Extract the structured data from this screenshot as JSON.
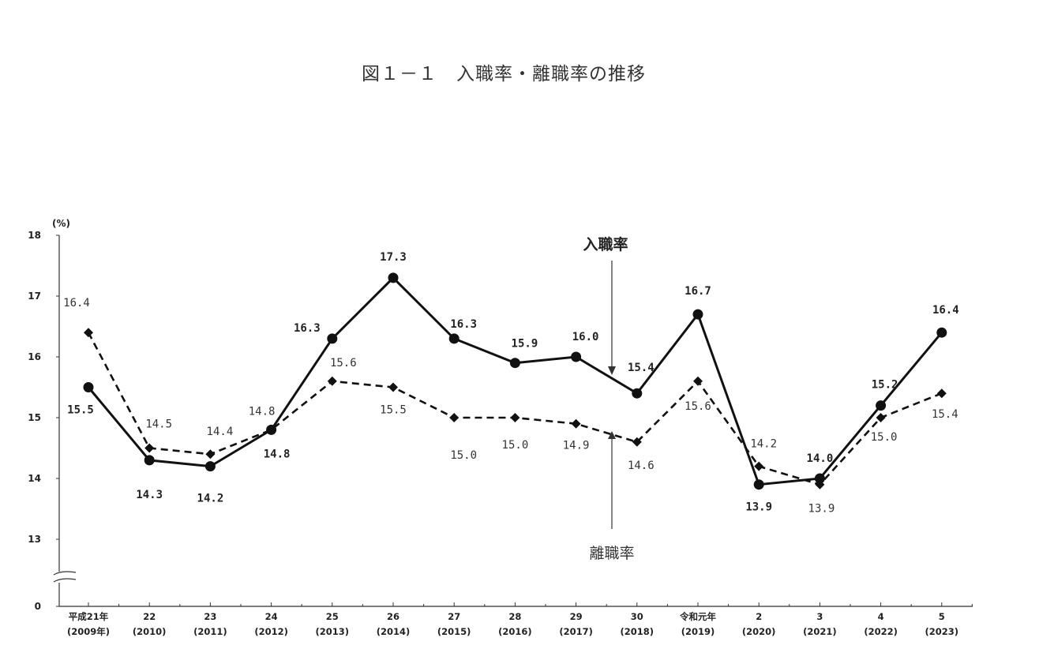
{
  "chart_data": {
    "type": "line",
    "title": "図１－１　入職率・離職率の推移",
    "ylabel": "(%)",
    "ylim": [
      0,
      18
    ],
    "yticks": [
      "18",
      "17",
      "16",
      "15",
      "14",
      "13",
      "0"
    ],
    "axis_break": true,
    "categories": [
      [
        "平成21年",
        "(2009年)"
      ],
      [
        "22",
        "(2010)"
      ],
      [
        "23",
        "(2011)"
      ],
      [
        "24",
        "(2012)"
      ],
      [
        "25",
        "(2013)"
      ],
      [
        "26",
        "(2014)"
      ],
      [
        "27",
        "(2015)"
      ],
      [
        "28",
        "(2016)"
      ],
      [
        "29",
        "(2017)"
      ],
      [
        "30",
        "(2018)"
      ],
      [
        "令和元年",
        "(2019)"
      ],
      [
        "2",
        "(2020)"
      ],
      [
        "3",
        "(2021)"
      ],
      [
        "4",
        "(2022)"
      ],
      [
        "5",
        "(2023)"
      ]
    ],
    "series": [
      {
        "name": "入職率",
        "style": "solid",
        "marker": "circle",
        "color": "#111111",
        "values": [
          15.5,
          14.3,
          14.2,
          14.8,
          16.3,
          17.3,
          16.3,
          15.9,
          16.0,
          15.4,
          16.7,
          13.9,
          14.0,
          15.2,
          16.4
        ],
        "labels": [
          "15.5",
          "14.3",
          "14.2",
          "14.8",
          "16.3",
          "17.3",
          "16.3",
          "15.9",
          "16.0",
          "15.4",
          "16.7",
          "13.9",
          "14.0",
          "15.2",
          "16.4"
        ]
      },
      {
        "name": "離職率",
        "style": "dashed",
        "marker": "diamond",
        "color": "#111111",
        "values": [
          16.4,
          14.5,
          14.4,
          14.8,
          15.6,
          15.5,
          15.0,
          15.0,
          14.9,
          14.6,
          15.6,
          14.2,
          13.9,
          15.0,
          15.4
        ],
        "labels": [
          "16.4",
          "14.5",
          "14.4",
          "14.8",
          "15.6",
          "15.5",
          "15.0",
          "15.0",
          "14.9",
          "14.6",
          "15.6",
          "14.2",
          "13.9",
          "15.0",
          "15.4"
        ]
      }
    ],
    "annotations": [
      "入職率",
      "離職率"
    ]
  }
}
